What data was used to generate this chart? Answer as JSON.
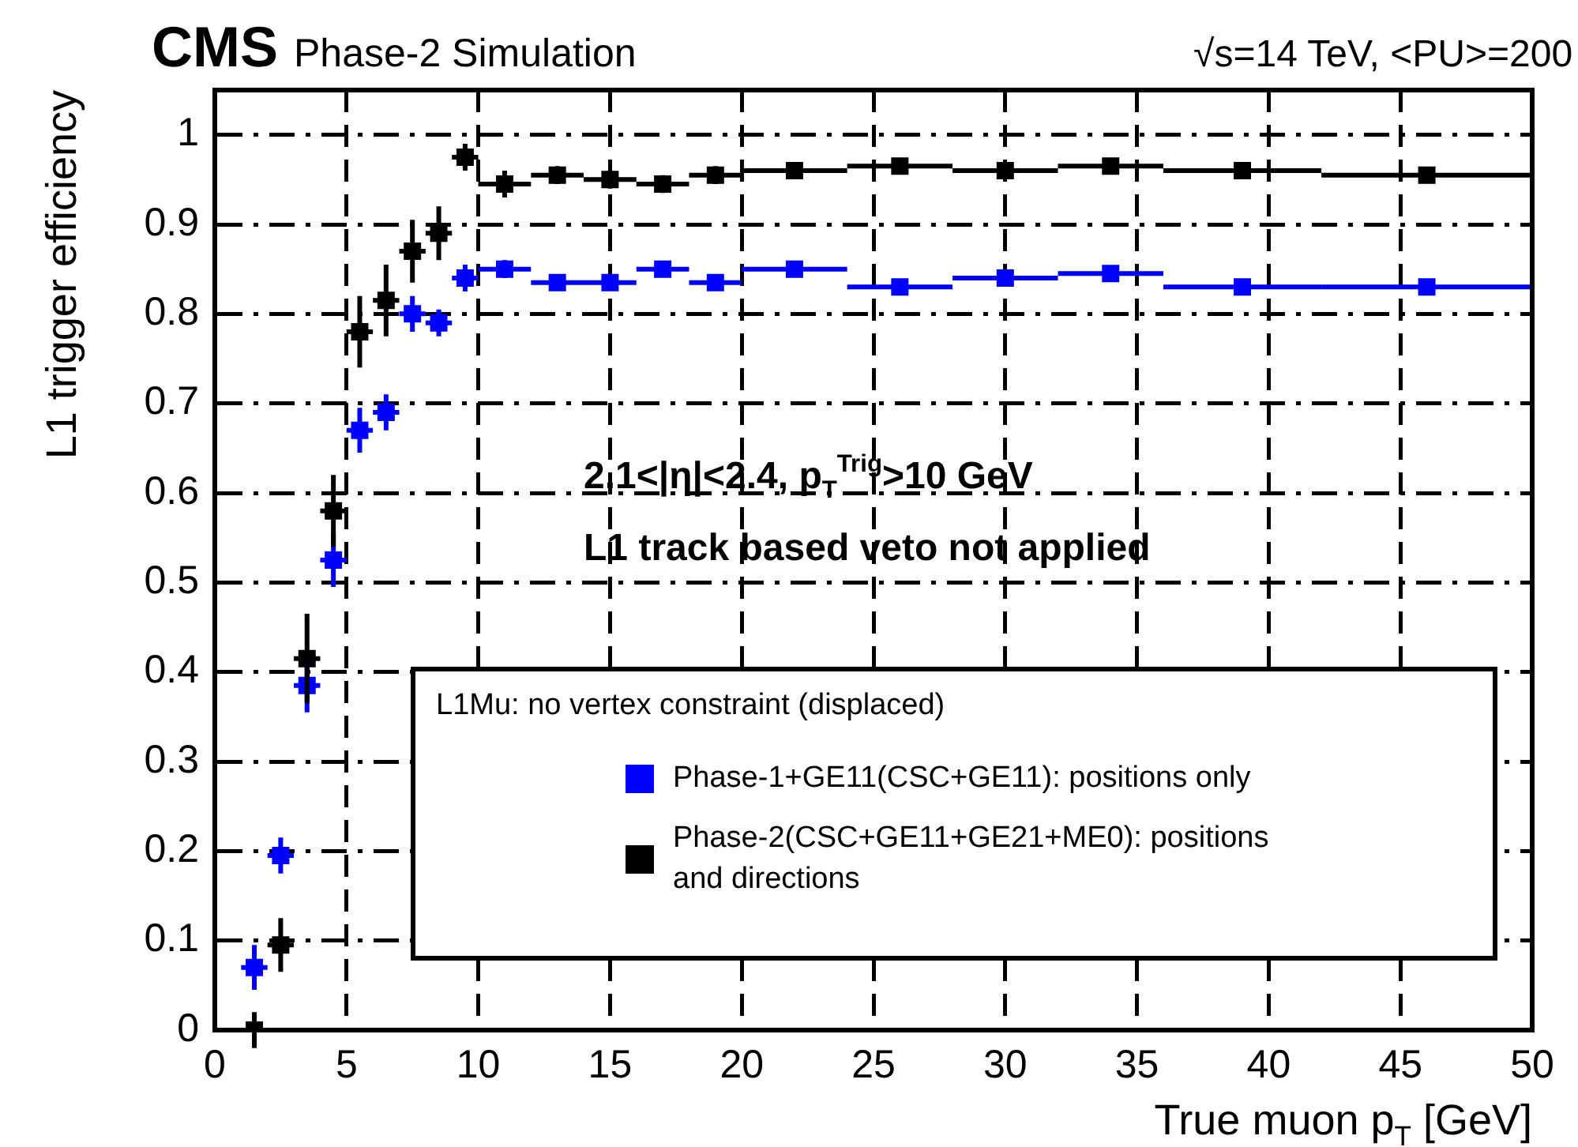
{
  "chart_data": {
    "type": "scatter",
    "title": "CMS",
    "subtitle": "Phase-2 Simulation",
    "xlabel": "True muon p$_{T}$ [GeV]",
    "ylabel": "L1 trigger efficiency",
    "legend_title": "L1Mu: no vertex constraint (displaced)",
    "annotations": [
      "√s=14 TeV, <PU>=200",
      "2.1<|η|<2.4, p$_{T}$$^{Trig}$>10 GeV",
      "L1 track based veto not applied"
    ],
    "x": [
      1.5,
      2.5,
      3.5,
      4.5,
      5.5,
      6.5,
      7.5,
      8.5,
      9.5,
      11,
      13,
      15,
      17,
      19,
      22,
      26,
      30,
      34,
      39,
      46
    ],
    "series": [
      {
        "name": "Phase-1+GE11(CSC+GE11): positions only",
        "color": "#0000ff",
        "values": [
          0.07,
          0.195,
          0.385,
          0.525,
          0.67,
          0.69,
          0.8,
          0.79,
          0.84,
          0.85,
          0.835,
          0.835,
          0.85,
          0.835,
          0.85,
          0.83,
          0.84,
          0.845,
          0.83,
          0.83
        ],
        "errors": [
          0.025,
          0.02,
          0.03,
          0.03,
          0.025,
          0.02,
          0.02,
          0.015,
          0.015,
          0.01,
          0.005,
          0.005,
          0.005,
          0.005,
          0.005,
          0.005,
          0.005,
          0.005,
          0.005,
          0.005
        ],
        "xerrors": [
          0.5,
          0.5,
          0.5,
          0.5,
          0.5,
          0.5,
          0.5,
          0.5,
          0.5,
          1,
          1,
          1,
          1,
          1,
          2,
          2,
          2,
          2,
          3,
          4
        ]
      },
      {
        "name": "Phase-2(CSC+GE11+GE21+ME0): positions and directions",
        "color": "#000000",
        "values": [
          0.0,
          0.095,
          0.415,
          0.58,
          0.78,
          0.815,
          0.87,
          0.89,
          0.975,
          0.945,
          0.955,
          0.95,
          0.945,
          0.955,
          0.96,
          0.965,
          0.96,
          0.965,
          0.96,
          0.955
        ],
        "errors": [
          0.02,
          0.03,
          0.05,
          0.04,
          0.04,
          0.04,
          0.035,
          0.03,
          0.015,
          0.015,
          0.01,
          0.01,
          0.01,
          0.01,
          0.005,
          0.005,
          0.005,
          0.005,
          0.005,
          0.005
        ],
        "xerrors": [
          0.5,
          0.5,
          0.5,
          0.5,
          0.5,
          0.5,
          0.5,
          0.5,
          0.5,
          1,
          1,
          1,
          1,
          1,
          2,
          2,
          2,
          2,
          3,
          4
        ]
      }
    ],
    "xlim": [
      0,
      50
    ],
    "xticks": [
      0,
      5,
      10,
      15,
      20,
      25,
      30,
      35,
      40,
      45,
      50
    ],
    "ylim": [
      0,
      1.05
    ],
    "yticks": [
      0,
      0.1,
      0.2,
      0.3,
      0.4,
      0.5,
      0.6,
      0.7,
      0.8,
      0.9,
      1
    ],
    "grid": true,
    "legend": "bottom right",
    "marker": "square"
  }
}
